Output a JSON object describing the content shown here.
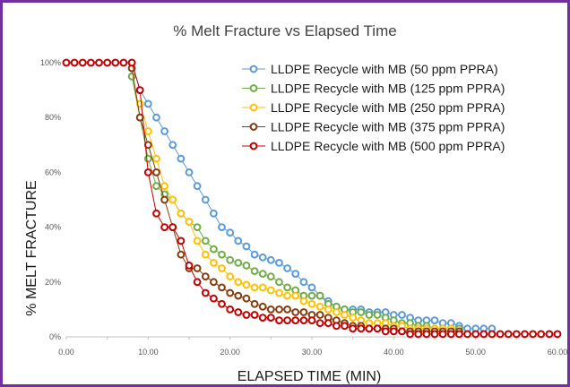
{
  "chart_data": {
    "type": "line",
    "title": "% Melt Fracture vs Elapsed Time",
    "xlabel": "ELAPSED TIME (MIN)",
    "ylabel": "% MELT FRACTURE",
    "xlim": [
      0,
      60
    ],
    "ylim": [
      0,
      100
    ],
    "x_ticks": [
      "0.00",
      "10.00",
      "20.00",
      "30.00",
      "40.00",
      "50.00",
      "60.00"
    ],
    "y_ticks": [
      "0%",
      "20%",
      "40%",
      "60%",
      "80%",
      "100%"
    ],
    "grid": false,
    "legend_position": "top-right",
    "series": [
      {
        "name": "LLDPE Recycle with MB (50 ppm PPRA)",
        "color": "#5b9bd5",
        "x": [
          0,
          1,
          2,
          3,
          4,
          5,
          6,
          7,
          8,
          9,
          10,
          11,
          12,
          13,
          14,
          15,
          16,
          17,
          18,
          19,
          20,
          21,
          22,
          23,
          24,
          25,
          26,
          27,
          28,
          29,
          30,
          31,
          32,
          33,
          34,
          35,
          36,
          37,
          38,
          39,
          40,
          41,
          42,
          43,
          44,
          45,
          46,
          47,
          48,
          49,
          50,
          51,
          52
        ],
        "y": [
          100,
          100,
          100,
          100,
          100,
          100,
          100,
          100,
          100,
          90,
          85,
          80,
          75,
          70,
          65,
          60,
          55,
          50,
          45,
          40,
          38,
          35,
          33,
          30,
          29,
          28,
          27,
          25,
          23,
          20,
          18,
          15,
          13,
          11,
          10,
          10,
          10,
          9,
          9,
          9,
          8,
          8,
          7,
          6,
          6,
          6,
          5,
          5,
          4,
          3,
          3,
          3,
          3
        ]
      },
      {
        "name": "LLDPE Recycle with MB (125 ppm PPRA)",
        "color": "#70ad47",
        "x": [
          8,
          9,
          10,
          11,
          12,
          13,
          14,
          15,
          16,
          17,
          18,
          19,
          20,
          21,
          22,
          23,
          24,
          25,
          26,
          27,
          28,
          29,
          30,
          31,
          32,
          33,
          34,
          35,
          36,
          37,
          38,
          39,
          40,
          41,
          42,
          43,
          44,
          45,
          46,
          47,
          48
        ],
        "y": [
          95,
          80,
          65,
          55,
          52,
          50,
          45,
          42,
          40,
          35,
          32,
          30,
          28,
          27,
          26,
          24,
          23,
          22,
          20,
          18,
          17,
          15,
          15,
          15,
          12,
          11,
          10,
          9,
          9,
          8,
          8,
          7,
          6,
          5,
          5,
          4,
          4,
          3,
          3,
          3,
          3
        ]
      },
      {
        "name": "LLDPE Recycle with MB (250 ppm PPRA)",
        "color": "#ffc000",
        "x": [
          9,
          10,
          11,
          12,
          13,
          14,
          15,
          16,
          17,
          18,
          19,
          20,
          21,
          22,
          23,
          24,
          25,
          26,
          27,
          28,
          29,
          30,
          31,
          32,
          33,
          34,
          35,
          36,
          37,
          38,
          39,
          40,
          41,
          42,
          43,
          44,
          45,
          46,
          47
        ],
        "y": [
          85,
          75,
          65,
          55,
          50,
          45,
          42,
          35,
          30,
          27,
          25,
          22,
          20,
          19,
          18,
          18,
          17,
          16,
          15,
          15,
          13,
          12,
          11,
          10,
          9,
          8,
          7,
          6,
          5,
          5,
          5,
          4,
          4,
          3,
          3,
          3,
          3,
          3,
          3
        ]
      },
      {
        "name": "LLDPE Recycle with MB (375 ppm PPRA)",
        "color": "#843c0c",
        "x": [
          8,
          9,
          10,
          11,
          12,
          13,
          14,
          15,
          16,
          17,
          18,
          19,
          20,
          21,
          22,
          23,
          24,
          25,
          26,
          27,
          28,
          29,
          30,
          31,
          32,
          33,
          34,
          35,
          36,
          37,
          38,
          39,
          40,
          41,
          42,
          43,
          44,
          45,
          46,
          47,
          48
        ],
        "y": [
          98,
          80,
          70,
          60,
          50,
          40,
          30,
          25,
          25,
          22,
          20,
          18,
          16,
          15,
          14,
          12,
          11,
          10,
          10,
          10,
          9,
          9,
          8,
          8,
          7,
          6,
          5,
          4,
          4,
          3,
          3,
          3,
          3,
          2,
          2,
          2,
          2,
          2,
          2,
          2,
          2
        ]
      },
      {
        "name": "LLDPE Recycle with MB (500 ppm PPRA)",
        "color": "#c00000",
        "x": [
          0,
          1,
          2,
          3,
          4,
          5,
          6,
          7,
          8,
          9,
          10,
          11,
          12,
          13,
          14,
          15,
          16,
          17,
          18,
          19,
          20,
          21,
          22,
          23,
          24,
          25,
          26,
          27,
          28,
          29,
          30,
          31,
          32,
          33,
          34,
          35,
          36,
          37,
          38,
          39,
          40,
          41,
          42,
          43,
          44,
          45,
          46,
          47,
          48,
          49,
          50,
          51,
          52,
          53,
          54,
          55,
          56,
          57,
          58,
          59,
          60
        ],
        "y": [
          100,
          100,
          100,
          100,
          100,
          100,
          100,
          100,
          100,
          90,
          60,
          45,
          40,
          40,
          35,
          26,
          20,
          16,
          14,
          12,
          10,
          9,
          8,
          8,
          7,
          7,
          6,
          6,
          6,
          6,
          6,
          5,
          5,
          4,
          4,
          3,
          3,
          3,
          3,
          2,
          2,
          2,
          1,
          1,
          1,
          1,
          1,
          1,
          1,
          1,
          1,
          1,
          1,
          1,
          1,
          1,
          1,
          1,
          1,
          1,
          1
        ]
      }
    ]
  }
}
